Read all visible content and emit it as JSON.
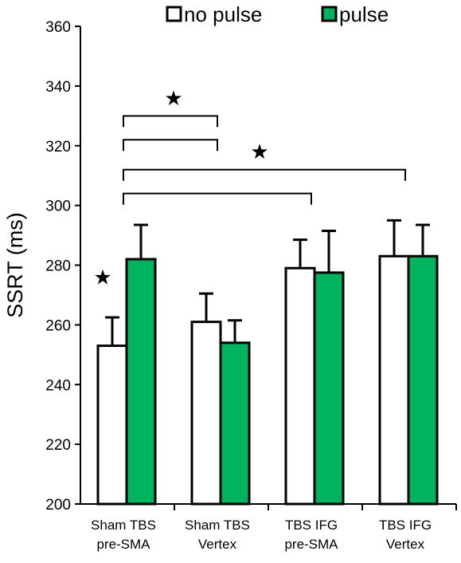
{
  "chart_data": {
    "type": "bar",
    "ylabel": "SSRT (ms)",
    "ylim": [
      200,
      360
    ],
    "yticks": [
      200,
      220,
      240,
      260,
      280,
      300,
      320,
      340,
      360
    ],
    "categories": [
      [
        "Sham TBS",
        "pre-SMA"
      ],
      [
        "Sham TBS",
        "Vertex"
      ],
      [
        "TBS IFG",
        "pre-SMA"
      ],
      [
        "TBS IFG",
        "Vertex"
      ]
    ],
    "series": [
      {
        "name": "no pulse",
        "color": "#ffffff",
        "values": [
          253,
          261,
          279,
          283
        ],
        "errors": [
          9.5,
          9.5,
          9.5,
          12
        ]
      },
      {
        "name": "pulse",
        "color": "#00b35f",
        "values": [
          282,
          254,
          277.5,
          283
        ],
        "errors": [
          11.5,
          7.5,
          14,
          10.5
        ]
      }
    ],
    "legend_position": "top",
    "annotations": {
      "star_symbol": "★",
      "single_stars": [
        {
          "category": 0,
          "value": 276
        }
      ],
      "brackets": [
        {
          "from": 0,
          "to": 1,
          "value": 330
        },
        {
          "from": 0,
          "to": 1,
          "value": 322
        },
        {
          "from": 0,
          "to": 3,
          "value": 312
        },
        {
          "from": 0,
          "to": 2,
          "value": 304
        }
      ],
      "bracket_stars": [
        {
          "between": [
            0,
            1
          ],
          "value": 336
        },
        {
          "between": [
            0,
            3
          ],
          "value": 318
        }
      ]
    }
  }
}
